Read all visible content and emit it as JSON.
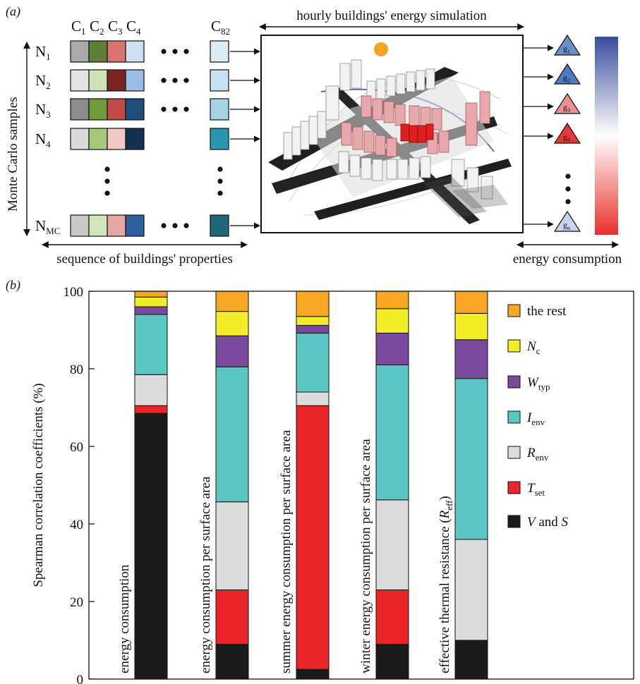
{
  "panel_a": {
    "label": "(a)",
    "columns": [
      "C1",
      "C2",
      "C3",
      "C4",
      "C82"
    ],
    "col_main": [
      "C",
      "C",
      "C",
      "C",
      "C"
    ],
    "col_sub": [
      "1",
      "2",
      "3",
      "4",
      "82"
    ],
    "rows": [
      {
        "main": "N",
        "sub": "1",
        "colors": [
          "#a9a9a9",
          "#5e7f35",
          "#d9736c",
          "#cfe0f2",
          "#dcecf6"
        ]
      },
      {
        "main": "N",
        "sub": "2",
        "colors": [
          "#e4e4e4",
          "#cfe2b8",
          "#7e2325",
          "#99bde6",
          "#c7e3f3"
        ]
      },
      {
        "main": "N",
        "sub": "3",
        "colors": [
          "#8b8b8b",
          "#6f9b3c",
          "#bf4a45",
          "#1e4e7c",
          "#a5d4e8"
        ]
      },
      {
        "main": "N",
        "sub": "4",
        "colors": [
          "#dadada",
          "#a7c97a",
          "#f2c7c4",
          "#13314f",
          "#2c95b0"
        ]
      },
      {
        "main": "N",
        "sub": "MC",
        "colors": [
          "#c8c8c8",
          "#d2e6bc",
          "#e6a6a3",
          "#2f5f9e",
          "#21677c"
        ]
      }
    ],
    "monte_carlo_label": "Monte Carlo samples",
    "sequence_label": "sequence of buildings' properties",
    "simulation_label": "hourly buildings' energy simulation",
    "outputs": [
      {
        "main": "g",
        "sub": "1",
        "color": "#6a8fcc"
      },
      {
        "main": "g",
        "sub": "2",
        "color": "#4f79c0"
      },
      {
        "main": "g",
        "sub": "3",
        "color": "#ec8f92"
      },
      {
        "main": "g",
        "sub": "4",
        "color": "#e23a36"
      },
      {
        "main": "g",
        "sub": "n",
        "color": "#c7d6ee"
      }
    ],
    "energy_label": "energy consumption",
    "colorbar": [
      "#3a4c9e",
      "#ffffff",
      "#e8312b"
    ]
  },
  "chart_data": {
    "type": "bar",
    "stacked": true,
    "label": "(b)",
    "ylabel": "Spearman correlation coefficients (%)",
    "ylim": [
      0,
      100
    ],
    "yticks": [
      0,
      20,
      40,
      60,
      80,
      100
    ],
    "categories": [
      "energy consumption",
      "energy consumption per surface area",
      "summer energy consumption per surface area",
      "winter energy consumption per surface area",
      "effective thermal resistance (Reff)"
    ],
    "category_label_main": [
      "energy consumption",
      "energy consumption per surface area",
      "summer energy consumption per surface area",
      "winter energy consumption per surface area",
      "effective thermal resistance ("
    ],
    "category_label_sub": [
      "",
      "",
      "",
      "",
      "eff"
    ],
    "category_label_italic": [
      "",
      "",
      "",
      "",
      "R"
    ],
    "category_label_tail": [
      "",
      "",
      "",
      "",
      ")"
    ],
    "series": [
      {
        "name": "V and S",
        "color": "#1a1a1a",
        "values": [
          68.5,
          9.0,
          2.5,
          9.0,
          10.0
        ]
      },
      {
        "name": "Tset",
        "color": "#e8262a",
        "values": [
          2.0,
          14.0,
          68.0,
          14.0,
          0.0
        ]
      },
      {
        "name": "Renv",
        "color": "#dcdcdc",
        "values": [
          8.0,
          22.7,
          3.5,
          23.2,
          26.0
        ]
      },
      {
        "name": "Ienv",
        "color": "#5cc6c2",
        "values": [
          15.5,
          34.8,
          15.2,
          34.8,
          41.5
        ]
      },
      {
        "name": "Wtyp",
        "color": "#7a4a9e",
        "values": [
          2.0,
          8.0,
          2.0,
          8.2,
          10.0
        ]
      },
      {
        "name": "Nc",
        "color": "#f4ec28",
        "values": [
          2.5,
          6.3,
          2.3,
          6.3,
          6.8
        ]
      },
      {
        "name": "the rest",
        "color": "#f6a623",
        "values": [
          1.5,
          5.2,
          6.5,
          4.5,
          5.7
        ]
      }
    ],
    "legend": [
      {
        "italic": "",
        "main": "the rest",
        "sub": "",
        "tail": "",
        "color": "#f6a623"
      },
      {
        "italic": "N",
        "main": "",
        "sub": "c",
        "tail": "",
        "color": "#f4ec28"
      },
      {
        "italic": "W",
        "main": "",
        "sub": "typ",
        "tail": "",
        "color": "#7a4a9e"
      },
      {
        "italic": "I",
        "main": "",
        "sub": "env",
        "tail": "",
        "color": "#5cc6c2"
      },
      {
        "italic": "R",
        "main": "",
        "sub": "env",
        "tail": "",
        "color": "#dcdcdc"
      },
      {
        "italic": "T",
        "main": "",
        "sub": "set",
        "tail": "",
        "color": "#e8262a"
      },
      {
        "italic": "V",
        "main": " and ",
        "sub": "",
        "tail": "S",
        "color": "#1a1a1a"
      }
    ],
    "legend_placement": "right",
    "grid": false
  }
}
